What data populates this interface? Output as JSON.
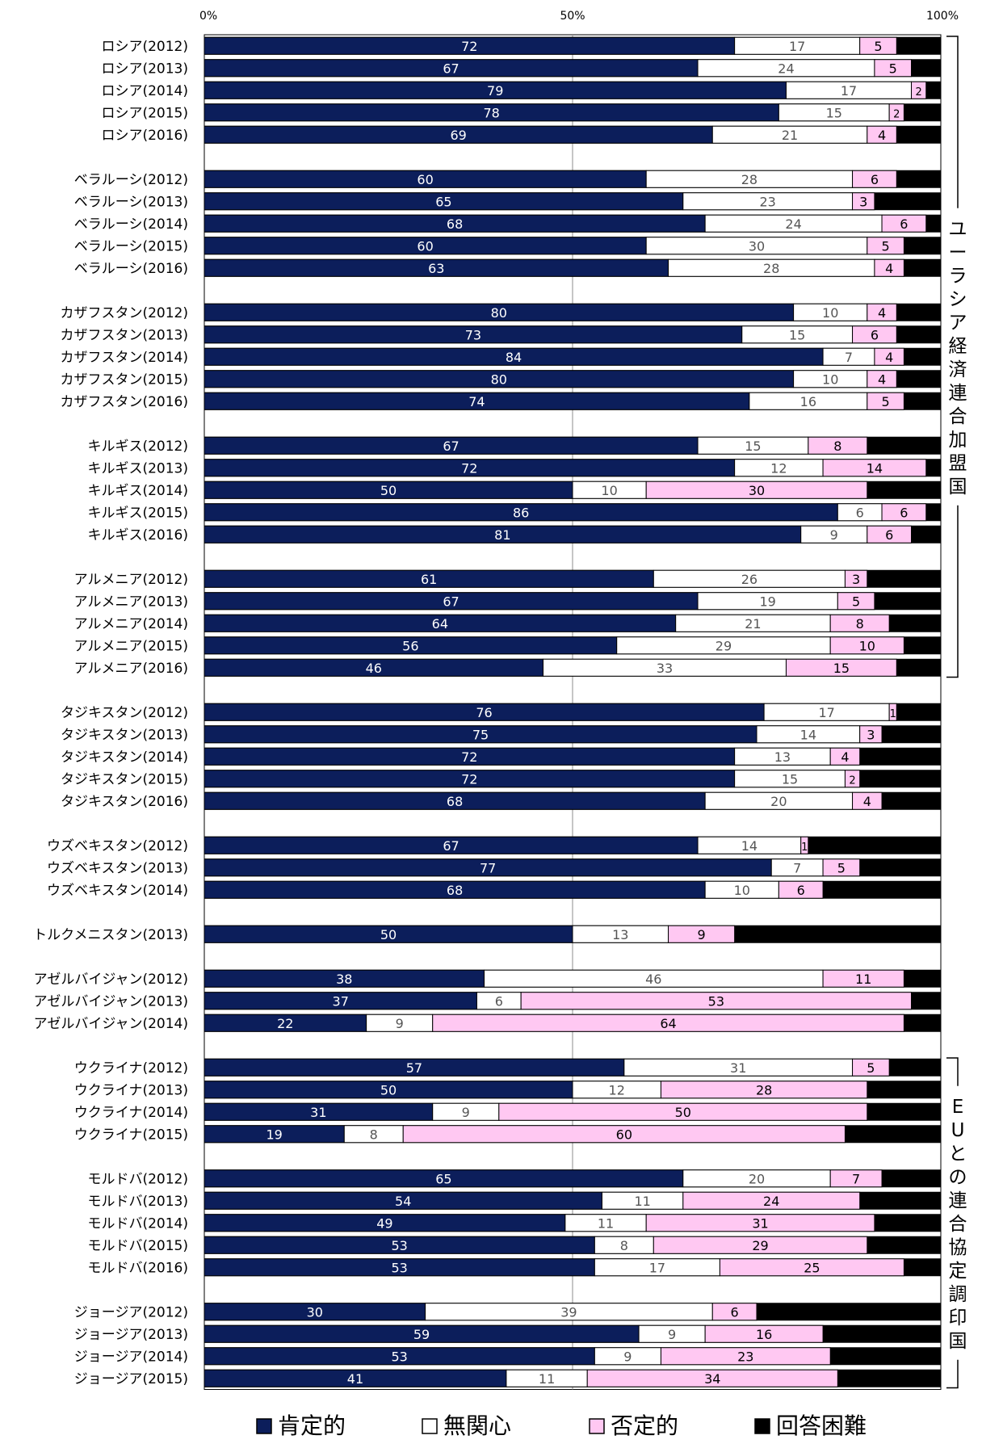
{
  "chart_data": {
    "type": "bar",
    "orientation": "horizontal",
    "stacked": true,
    "xlim": [
      0,
      100
    ],
    "x_ticks": [
      "0%",
      "50%",
      "100%"
    ],
    "grid": true,
    "legend_position": "bottom",
    "series": [
      {
        "name": "肯定的",
        "color": "#0c1e5b"
      },
      {
        "name": "無関心",
        "color": "#ffffff"
      },
      {
        "name": "否定的",
        "color": "#ffc8f2"
      },
      {
        "name": "回答困難",
        "color": "#000000"
      }
    ],
    "rows": [
      {
        "label": "ロシア(2012)",
        "values": [
          72,
          17,
          5
        ]
      },
      {
        "label": "ロシア(2013)",
        "values": [
          67,
          24,
          5
        ]
      },
      {
        "label": "ロシア(2014)",
        "values": [
          79,
          17,
          2
        ]
      },
      {
        "label": "ロシア(2015)",
        "values": [
          78,
          15,
          2
        ]
      },
      {
        "label": "ロシア(2016)",
        "values": [
          69,
          21,
          4
        ]
      },
      {
        "label": "",
        "values": []
      },
      {
        "label": "ベラルーシ(2012)",
        "values": [
          60,
          28,
          6
        ]
      },
      {
        "label": "ベラルーシ(2013)",
        "values": [
          65,
          23,
          3
        ]
      },
      {
        "label": "ベラルーシ(2014)",
        "values": [
          68,
          24,
          6
        ]
      },
      {
        "label": "ベラルーシ(2015)",
        "values": [
          60,
          30,
          5
        ]
      },
      {
        "label": "ベラルーシ(2016)",
        "values": [
          63,
          28,
          4
        ]
      },
      {
        "label": "",
        "values": []
      },
      {
        "label": "カザフスタン(2012)",
        "values": [
          80,
          10,
          4
        ]
      },
      {
        "label": "カザフスタン(2013)",
        "values": [
          73,
          15,
          6
        ]
      },
      {
        "label": "カザフスタン(2014)",
        "values": [
          84,
          7,
          4
        ]
      },
      {
        "label": "カザフスタン(2015)",
        "values": [
          80,
          10,
          4
        ]
      },
      {
        "label": "カザフスタン(2016)",
        "values": [
          74,
          16,
          5
        ]
      },
      {
        "label": "",
        "values": []
      },
      {
        "label": "キルギス(2012)",
        "values": [
          67,
          15,
          8
        ]
      },
      {
        "label": "キルギス(2013)",
        "values": [
          72,
          12,
          14
        ]
      },
      {
        "label": "キルギス(2014)",
        "values": [
          50,
          10,
          30
        ]
      },
      {
        "label": "キルギス(2015)",
        "values": [
          86,
          6,
          6
        ]
      },
      {
        "label": "キルギス(2016)",
        "values": [
          81,
          9,
          6
        ]
      },
      {
        "label": "",
        "values": []
      },
      {
        "label": "アルメニア(2012)",
        "values": [
          61,
          26,
          3
        ]
      },
      {
        "label": "アルメニア(2013)",
        "values": [
          67,
          19,
          5
        ]
      },
      {
        "label": "アルメニア(2014)",
        "values": [
          64,
          21,
          8
        ]
      },
      {
        "label": "アルメニア(2015)",
        "values": [
          56,
          29,
          10
        ]
      },
      {
        "label": "アルメニア(2016)",
        "values": [
          46,
          33,
          15
        ]
      },
      {
        "label": "",
        "values": []
      },
      {
        "label": "タジキスタン(2012)",
        "values": [
          76,
          17,
          1
        ]
      },
      {
        "label": "タジキスタン(2013)",
        "values": [
          75,
          14,
          3
        ]
      },
      {
        "label": "タジキスタン(2014)",
        "values": [
          72,
          13,
          4
        ]
      },
      {
        "label": "タジキスタン(2015)",
        "values": [
          72,
          15,
          2
        ]
      },
      {
        "label": "タジキスタン(2016)",
        "values": [
          68,
          20,
          4
        ]
      },
      {
        "label": "",
        "values": []
      },
      {
        "label": "ウズベキスタン(2012)",
        "values": [
          67,
          14,
          1
        ]
      },
      {
        "label": "ウズベキスタン(2013)",
        "values": [
          77,
          7,
          5
        ]
      },
      {
        "label": "ウズベキスタン(2014)",
        "values": [
          68,
          10,
          6
        ]
      },
      {
        "label": "",
        "values": []
      },
      {
        "label": "トルクメニスタン(2013)",
        "values": [
          50,
          13,
          9
        ]
      },
      {
        "label": "",
        "values": []
      },
      {
        "label": "アゼルバイジャン(2012)",
        "values": [
          38,
          46,
          11
        ]
      },
      {
        "label": "アゼルバイジャン(2013)",
        "values": [
          37,
          6,
          53
        ]
      },
      {
        "label": "アゼルバイジャン(2014)",
        "values": [
          22,
          9,
          64
        ]
      },
      {
        "label": "",
        "values": []
      },
      {
        "label": "ウクライナ(2012)",
        "values": [
          57,
          31,
          5
        ]
      },
      {
        "label": "ウクライナ(2013)",
        "values": [
          50,
          12,
          28
        ]
      },
      {
        "label": "ウクライナ(2014)",
        "values": [
          31,
          9,
          50
        ]
      },
      {
        "label": "ウクライナ(2015)",
        "values": [
          19,
          8,
          60
        ]
      },
      {
        "label": "",
        "values": []
      },
      {
        "label": "モルドバ(2012)",
        "values": [
          65,
          20,
          7
        ]
      },
      {
        "label": "モルドバ(2013)",
        "values": [
          54,
          11,
          24
        ]
      },
      {
        "label": "モルドバ(2014)",
        "values": [
          49,
          11,
          31
        ]
      },
      {
        "label": "モルドバ(2015)",
        "values": [
          53,
          8,
          29
        ]
      },
      {
        "label": "モルドバ(2016)",
        "values": [
          53,
          17,
          25
        ]
      },
      {
        "label": "",
        "values": []
      },
      {
        "label": "ジョージア(2012)",
        "values": [
          30,
          39,
          6
        ]
      },
      {
        "label": "ジョージア(2013)",
        "values": [
          59,
          9,
          16
        ]
      },
      {
        "label": "ジョージア(2014)",
        "values": [
          53,
          9,
          23
        ]
      },
      {
        "label": "ジョージア(2015)",
        "values": [
          41,
          11,
          34
        ]
      }
    ],
    "brackets": [
      {
        "label": "ユーラシア経済連合加盟国",
        "from": "ロシア(2012)",
        "to": "アルメニア(2016)"
      },
      {
        "label": "EUとの連合協定調印国",
        "from": "ウクライナ(2012)",
        "to": "ジョージア(2015)"
      }
    ]
  }
}
